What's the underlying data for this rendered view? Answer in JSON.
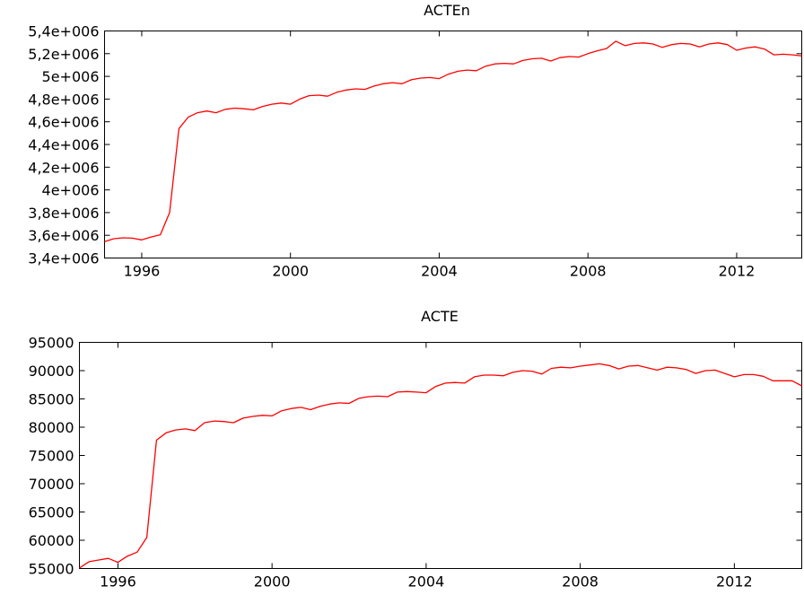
{
  "chart_data": [
    {
      "type": "line",
      "title": "ACTEn",
      "xlabel": "",
      "ylabel": "",
      "xlim": [
        1995.0,
        2013.75
      ],
      "ylim": [
        3400000,
        5400000
      ],
      "x_ticks": [
        1996,
        2000,
        2004,
        2008,
        2012
      ],
      "x_tick_labels": [
        "1996",
        "2000",
        "2004",
        "2008",
        "2012"
      ],
      "y_ticks": [
        3400000,
        3600000,
        3800000,
        4000000,
        4200000,
        4400000,
        4600000,
        4800000,
        5000000,
        5200000,
        5400000
      ],
      "y_tick_labels": [
        "3,4e+006",
        "3,6e+006",
        "3,8e+006",
        "4e+006",
        "4,2e+006",
        "4,4e+006",
        "4,6e+006",
        "4,8e+006",
        "5e+006",
        "5,2e+006",
        "5,4e+006"
      ],
      "grid": false,
      "series": [
        {
          "color": "#ff0000",
          "x": [
            1995.0,
            1995.25,
            1995.5,
            1995.75,
            1996.0,
            1996.25,
            1996.5,
            1996.75,
            1997.0,
            1997.25,
            1997.5,
            1997.75,
            1998.0,
            1998.25,
            1998.5,
            1998.75,
            1999.0,
            1999.25,
            1999.5,
            1999.75,
            2000.0,
            2000.25,
            2000.5,
            2000.75,
            2001.0,
            2001.25,
            2001.5,
            2001.75,
            2002.0,
            2002.25,
            2002.5,
            2002.75,
            2003.0,
            2003.25,
            2003.5,
            2003.75,
            2004.0,
            2004.25,
            2004.5,
            2004.75,
            2005.0,
            2005.25,
            2005.5,
            2005.75,
            2006.0,
            2006.25,
            2006.5,
            2006.75,
            2007.0,
            2007.25,
            2007.5,
            2007.75,
            2008.0,
            2008.25,
            2008.5,
            2008.75,
            2009.0,
            2009.25,
            2009.5,
            2009.75,
            2010.0,
            2010.25,
            2010.5,
            2010.75,
            2011.0,
            2011.25,
            2011.5,
            2011.75,
            2012.0,
            2012.25,
            2012.5,
            2012.75,
            2013.0,
            2013.25,
            2013.5,
            2013.75
          ],
          "y": [
            3545000,
            3570000,
            3578000,
            3575000,
            3560000,
            3585000,
            3605000,
            3800000,
            4540000,
            4640000,
            4680000,
            4695000,
            4680000,
            4710000,
            4720000,
            4715000,
            4705000,
            4735000,
            4755000,
            4765000,
            4755000,
            4800000,
            4830000,
            4835000,
            4825000,
            4860000,
            4880000,
            4890000,
            4885000,
            4915000,
            4935000,
            4945000,
            4935000,
            4970000,
            4985000,
            4990000,
            4980000,
            5020000,
            5045000,
            5055000,
            5050000,
            5090000,
            5110000,
            5115000,
            5110000,
            5140000,
            5155000,
            5160000,
            5135000,
            5165000,
            5175000,
            5170000,
            5200000,
            5225000,
            5245000,
            5310000,
            5270000,
            5290000,
            5295000,
            5285000,
            5255000,
            5280000,
            5290000,
            5285000,
            5260000,
            5285000,
            5295000,
            5280000,
            5230000,
            5250000,
            5260000,
            5240000,
            5190000,
            5195000,
            5190000,
            5180000
          ]
        }
      ]
    },
    {
      "type": "line",
      "title": "ACTE",
      "xlabel": "",
      "ylabel": "",
      "xlim": [
        1995.0,
        2013.75
      ],
      "ylim": [
        55000,
        95000
      ],
      "x_ticks": [
        1996,
        2000,
        2004,
        2008,
        2012
      ],
      "x_tick_labels": [
        "1996",
        "2000",
        "2004",
        "2008",
        "2012"
      ],
      "y_ticks": [
        55000,
        60000,
        65000,
        70000,
        75000,
        80000,
        85000,
        90000,
        95000
      ],
      "y_tick_labels": [
        "55000",
        "60000",
        "65000",
        "70000",
        "75000",
        "80000",
        "85000",
        "90000",
        "95000"
      ],
      "grid": false,
      "series": [
        {
          "color": "#ff0000",
          "x": [
            1995.0,
            1995.25,
            1995.5,
            1995.75,
            1996.0,
            1996.25,
            1996.5,
            1996.75,
            1997.0,
            1997.25,
            1997.5,
            1997.75,
            1998.0,
            1998.25,
            1998.5,
            1998.75,
            1999.0,
            1999.25,
            1999.5,
            1999.75,
            2000.0,
            2000.25,
            2000.5,
            2000.75,
            2001.0,
            2001.25,
            2001.5,
            2001.75,
            2002.0,
            2002.25,
            2002.5,
            2002.75,
            2003.0,
            2003.25,
            2003.5,
            2003.75,
            2004.0,
            2004.25,
            2004.5,
            2004.75,
            2005.0,
            2005.25,
            2005.5,
            2005.75,
            2006.0,
            2006.25,
            2006.5,
            2006.75,
            2007.0,
            2007.25,
            2007.5,
            2007.75,
            2008.0,
            2008.25,
            2008.5,
            2008.75,
            2009.0,
            2009.25,
            2009.5,
            2009.75,
            2010.0,
            2010.25,
            2010.5,
            2010.75,
            2011.0,
            2011.25,
            2011.5,
            2011.75,
            2012.0,
            2012.25,
            2012.5,
            2012.75,
            2013.0,
            2013.25,
            2013.5,
            2013.75
          ],
          "y": [
            55100,
            56200,
            56500,
            56800,
            56100,
            57200,
            57900,
            60500,
            77700,
            79000,
            79500,
            79700,
            79400,
            80800,
            81100,
            81000,
            80800,
            81600,
            81900,
            82100,
            82000,
            82900,
            83300,
            83500,
            83100,
            83700,
            84100,
            84300,
            84200,
            85100,
            85400,
            85500,
            85400,
            86200,
            86300,
            86200,
            86100,
            87200,
            87800,
            87900,
            87800,
            88900,
            89200,
            89200,
            89100,
            89700,
            90000,
            89900,
            89400,
            90400,
            90600,
            90500,
            90800,
            91000,
            91200,
            90900,
            90300,
            90800,
            90900,
            90500,
            90100,
            90600,
            90500,
            90200,
            89500,
            90000,
            90100,
            89500,
            88900,
            89300,
            89300,
            89000,
            88200,
            88200,
            88200,
            87300
          ]
        }
      ]
    }
  ]
}
